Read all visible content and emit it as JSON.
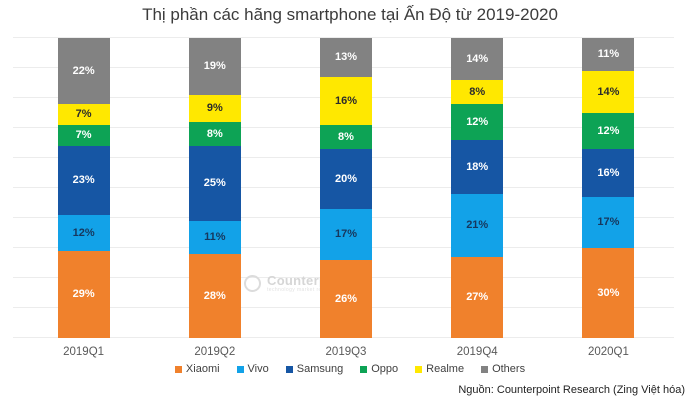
{
  "title": "Thị phần các hãng smartphone tại Ấn Độ từ 2019-2020",
  "source": "Nguồn: Counterpoint Research (Zing Việt hóa)",
  "watermark": {
    "brand": "Counterpoint",
    "tagline": "technology market research"
  },
  "chart_data": {
    "type": "bar",
    "stacked": true,
    "title": "Thị phần các hãng smartphone tại Ấn Độ từ 2019-2020",
    "categories": [
      "2019Q1",
      "2019Q2",
      "2019Q3",
      "2019Q4",
      "2020Q1"
    ],
    "series": [
      {
        "name": "Xiaomi",
        "color": "#F0812C",
        "label_color": "#FFFFFF",
        "values": [
          29,
          28,
          26,
          27,
          30
        ]
      },
      {
        "name": "Vivo",
        "color": "#12A2E8",
        "label_color": "#17375D",
        "values": [
          12,
          11,
          17,
          21,
          17
        ]
      },
      {
        "name": "Samsung",
        "color": "#1656A4",
        "label_color": "#FFFFFF",
        "values": [
          23,
          25,
          20,
          18,
          16
        ]
      },
      {
        "name": "Oppo",
        "color": "#0DA355",
        "label_color": "#FFFFFF",
        "values": [
          7,
          8,
          8,
          12,
          12
        ]
      },
      {
        "name": "Realme",
        "color": "#FFE800",
        "label_color": "#2B2B2B",
        "values": [
          7,
          9,
          16,
          8,
          14
        ]
      },
      {
        "name": "Others",
        "color": "#828282",
        "label_color": "#FFFFFF",
        "values": [
          22,
          19,
          13,
          14,
          11
        ]
      }
    ],
    "value_suffix": "%",
    "ylim": [
      0,
      100
    ],
    "gridlines_every": 10,
    "grid": true,
    "y_axis_labels": false,
    "legend_position": "bottom",
    "stack_order_bottom_to_top": [
      "Xiaomi",
      "Vivo",
      "Samsung",
      "Oppo",
      "Realme",
      "Others"
    ]
  }
}
